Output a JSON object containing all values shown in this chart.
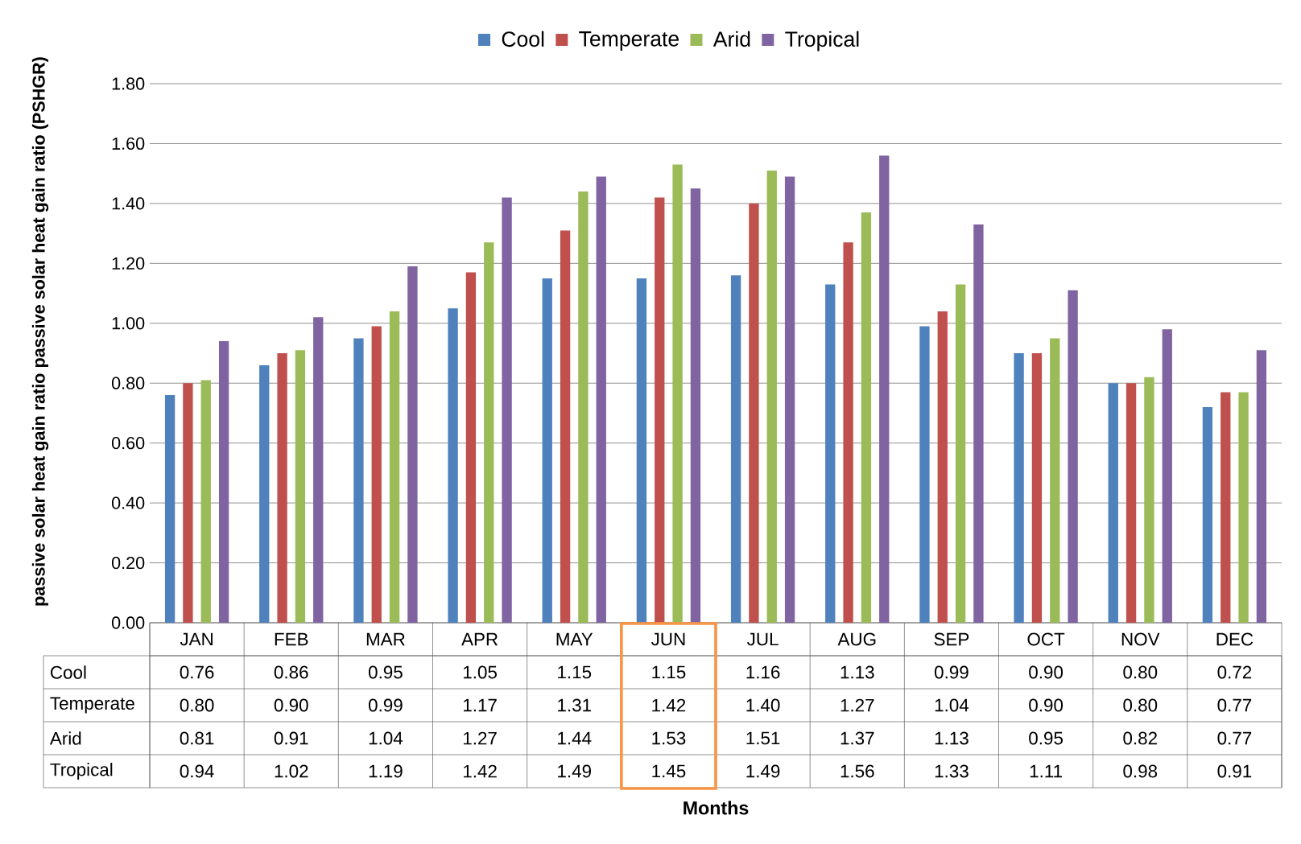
{
  "chart_data": {
    "type": "bar",
    "annotations": [
      "Months"
    ],
    "ylabel": "passive solar heat gain ratio passive solar heat gain ratio (PSHGR)",
    "categories": [
      "JAN",
      "FEB",
      "MAR",
      "APR",
      "MAY",
      "JUN",
      "JUL",
      "AUG",
      "SEP",
      "OCT",
      "NOV",
      "DEC"
    ],
    "series": [
      {
        "name": "Cool",
        "color": "#4f81bd",
        "values": [
          0.76,
          0.86,
          0.95,
          1.05,
          1.15,
          1.15,
          1.16,
          1.13,
          0.99,
          0.9,
          0.8,
          0.72
        ],
        "value_labels": [
          "0.76",
          "0.86",
          "0.95",
          "1.05",
          "1.15",
          "1.15",
          "1.16",
          "1.13",
          "0.99",
          "0.90",
          "0.80",
          "0.72"
        ]
      },
      {
        "name": "Temperate",
        "color": "#c0504d",
        "values": [
          0.8,
          0.9,
          0.99,
          1.17,
          1.31,
          1.42,
          1.4,
          1.27,
          1.04,
          0.9,
          0.8,
          0.77
        ],
        "value_labels": [
          "0.80",
          "0.90",
          "0.99",
          "1.17",
          "1.31",
          "1.42",
          "1.40",
          "1.27",
          "1.04",
          "0.90",
          "0.80",
          "0.77"
        ]
      },
      {
        "name": "Arid",
        "color": "#9bbb59",
        "values": [
          0.81,
          0.91,
          1.04,
          1.27,
          1.44,
          1.53,
          1.51,
          1.37,
          1.13,
          0.95,
          0.82,
          0.77
        ],
        "value_labels": [
          "0.81",
          "0.91",
          "1.04",
          "1.27",
          "1.44",
          "1.53",
          "1.51",
          "1.37",
          "1.13",
          "0.95",
          "0.82",
          "0.77"
        ]
      },
      {
        "name": "Tropical",
        "color": "#8064a2",
        "values": [
          0.94,
          1.02,
          1.19,
          1.42,
          1.49,
          1.45,
          1.49,
          1.56,
          1.33,
          1.11,
          0.98,
          0.91
        ],
        "value_labels": [
          "0.94",
          "1.02",
          "1.19",
          "1.42",
          "1.49",
          "1.45",
          "1.49",
          "1.56",
          "1.33",
          "1.11",
          "0.98",
          "0.91"
        ]
      }
    ],
    "ylim": [
      0,
      1.8
    ],
    "yticks": [
      {
        "value": 0,
        "label": "0.00"
      },
      {
        "value": 0.2,
        "label": "0.20"
      },
      {
        "value": 0.4,
        "label": "0.40"
      },
      {
        "value": 0.6,
        "label": "0.60"
      },
      {
        "value": 0.8,
        "label": "0.80"
      },
      {
        "value": 1.0,
        "label": "1.00"
      },
      {
        "value": 1.2,
        "label": "1.20"
      },
      {
        "value": 1.4,
        "label": "1.40"
      },
      {
        "value": 1.6,
        "label": "1.60"
      },
      {
        "value": 1.8,
        "label": "1.80"
      }
    ],
    "grid": "y",
    "legend": "top"
  }
}
